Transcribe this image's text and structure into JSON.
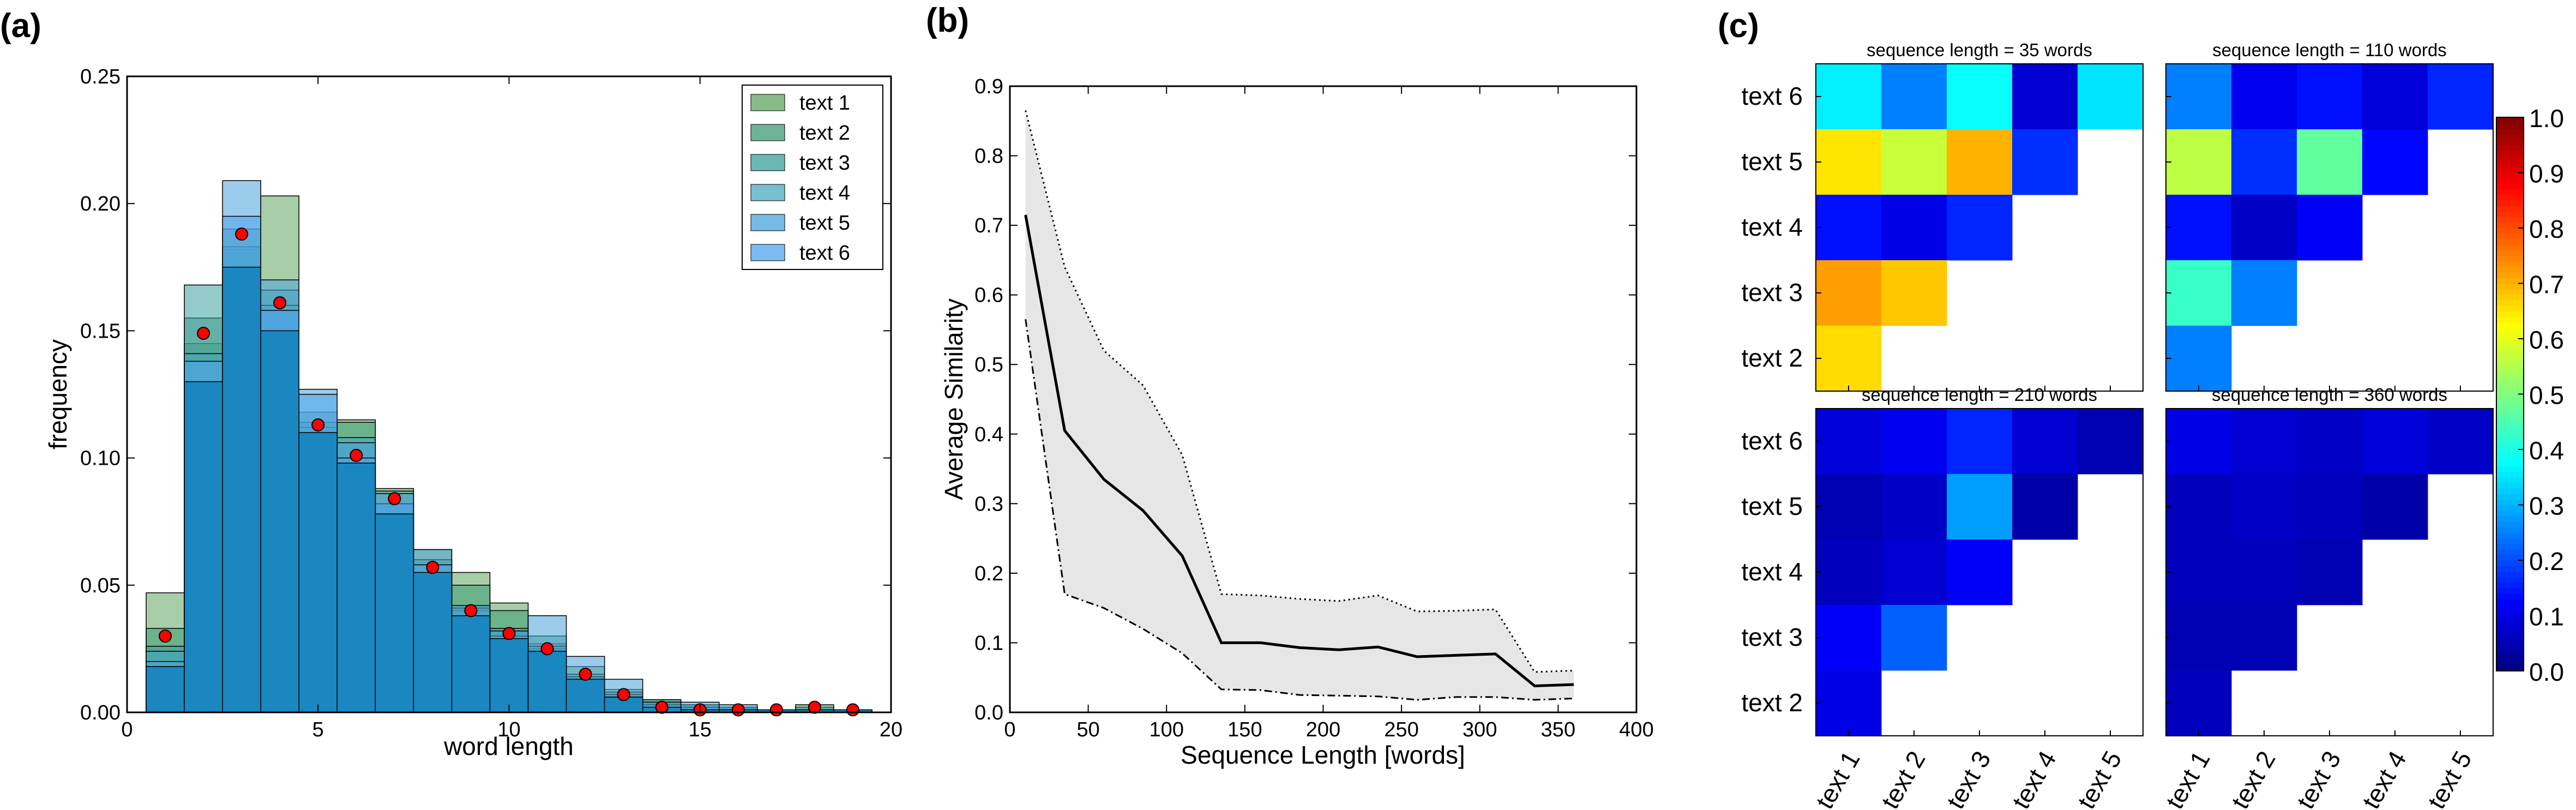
{
  "panel_labels": [
    "(a)",
    "(b)",
    "(c)"
  ],
  "colors": {
    "text1": "#5fa55f",
    "text2": "#3c9a74",
    "text3": "#3a9e9e",
    "text4": "#49aac2",
    "text5": "#4aa3dc",
    "text6": "#4ea4ec",
    "overlap": "#1a87c0",
    "marker": "#ff0000",
    "band": "#e6e6e6"
  },
  "chart_data": [
    {
      "type": "bar",
      "xlabel": "word length",
      "ylabel": "frequency",
      "xlim": [
        0,
        20
      ],
      "ylim": [
        0,
        0.25
      ],
      "xticks": [
        0,
        5,
        10,
        15,
        20
      ],
      "yticks": [
        "0.00",
        "0.05",
        "0.10",
        "0.15",
        "0.20",
        "0.25"
      ],
      "legend_position": "top-right",
      "bins": [
        1,
        2,
        3,
        4,
        5,
        6,
        7,
        8,
        9,
        10,
        11,
        12,
        13,
        14,
        15,
        16,
        17,
        18,
        19
      ],
      "series": [
        {
          "name": "text 1",
          "values": [
            0.047,
            0.145,
            0.182,
            0.203,
            0.118,
            0.115,
            0.088,
            0.064,
            0.055,
            0.043,
            0.027,
            0.018,
            0.009,
            0.005,
            0.003,
            0.002,
            0.001,
            0.002,
            0.001
          ]
        },
        {
          "name": "text 2",
          "values": [
            0.033,
            0.155,
            0.19,
            0.15,
            0.114,
            0.114,
            0.087,
            0.06,
            0.05,
            0.04,
            0.03,
            0.015,
            0.008,
            0.005,
            0.003,
            0.002,
            0.001,
            0.003,
            0.001
          ]
        },
        {
          "name": "text 3",
          "values": [
            0.026,
            0.168,
            0.183,
            0.166,
            0.11,
            0.098,
            0.078,
            0.055,
            0.04,
            0.033,
            0.025,
            0.014,
            0.007,
            0.004,
            0.002,
            0.002,
            0.001,
            0.001,
            0.001
          ]
        },
        {
          "name": "text 4",
          "values": [
            0.024,
            0.141,
            0.175,
            0.16,
            0.112,
            0.108,
            0.082,
            0.055,
            0.041,
            0.03,
            0.026,
            0.014,
            0.006,
            0.003,
            0.002,
            0.001,
            0.001,
            0.001,
            0.001
          ]
        },
        {
          "name": "text 5",
          "values": [
            0.02,
            0.13,
            0.209,
            0.17,
            0.127,
            0.106,
            0.082,
            0.064,
            0.042,
            0.032,
            0.038,
            0.022,
            0.013,
            0.004,
            0.004,
            0.003,
            0.001,
            0.001,
            0.001
          ]
        },
        {
          "name": "text 6",
          "values": [
            0.018,
            0.138,
            0.195,
            0.158,
            0.125,
            0.1,
            0.086,
            0.058,
            0.038,
            0.029,
            0.024,
            0.013,
            0.006,
            0.002,
            0.001,
            0.001,
            0.001,
            0.001,
            0.001
          ]
        }
      ],
      "mean_points": {
        "x": [
          1,
          2,
          3,
          4,
          5,
          6,
          7,
          8,
          9,
          10,
          11,
          12,
          13,
          14,
          15,
          16,
          17,
          18,
          19
        ],
        "y": [
          0.03,
          0.149,
          0.188,
          0.161,
          0.113,
          0.101,
          0.084,
          0.057,
          0.04,
          0.031,
          0.025,
          0.015,
          0.007,
          0.002,
          0.001,
          0.001,
          0.001,
          0.002,
          0.001
        ]
      }
    },
    {
      "type": "line",
      "xlabel": "Sequence Length [words]",
      "ylabel": "Average Similarity",
      "xlim": [
        0,
        400
      ],
      "ylim": [
        0,
        0.9
      ],
      "xticks": [
        0,
        50,
        100,
        150,
        200,
        250,
        300,
        350,
        400
      ],
      "yticks": [
        "0.0",
        "0.1",
        "0.2",
        "0.3",
        "0.4",
        "0.5",
        "0.6",
        "0.7",
        "0.8",
        "0.9"
      ],
      "x": [
        10,
        35,
        60,
        85,
        110,
        135,
        160,
        185,
        210,
        235,
        260,
        285,
        310,
        335,
        360
      ],
      "mean": [
        0.715,
        0.405,
        0.335,
        0.29,
        0.225,
        0.1,
        0.1,
        0.093,
        0.09,
        0.094,
        0.08,
        0.082,
        0.084,
        0.038,
        0.04
      ],
      "upper": [
        0.865,
        0.64,
        0.52,
        0.47,
        0.37,
        0.17,
        0.168,
        0.163,
        0.16,
        0.168,
        0.145,
        0.146,
        0.148,
        0.058,
        0.06
      ],
      "lower": [
        0.565,
        0.17,
        0.15,
        0.12,
        0.085,
        0.033,
        0.032,
        0.025,
        0.024,
        0.023,
        0.018,
        0.022,
        0.022,
        0.018,
        0.02
      ]
    },
    {
      "type": "heatmap",
      "row_labels": [
        "text 6",
        "text 5",
        "text 4",
        "text 3",
        "text 2"
      ],
      "col_labels": [
        "text 1",
        "text 2",
        "text 3",
        "text 4",
        "text 5"
      ],
      "colorbar_ticks": [
        "0.0",
        "0.1",
        "0.2",
        "0.3",
        "0.4",
        "0.5",
        "0.6",
        "0.7",
        "0.8",
        "0.9",
        "1.0"
      ],
      "vmin": 0,
      "vmax": 1,
      "panels": [
        {
          "title": "sequence length = 35 words",
          "values": [
            [
              0.36,
              0.25,
              0.38,
              0.08,
              0.35
            ],
            [
              0.65,
              0.57,
              0.7,
              0.17,
              null
            ],
            [
              0.14,
              0.1,
              0.16,
              null,
              null
            ],
            [
              0.72,
              0.68,
              null,
              null,
              null
            ],
            [
              0.66,
              null,
              null,
              null,
              null
            ]
          ]
        },
        {
          "title": "sequence length = 110 words",
          "values": [
            [
              0.25,
              0.11,
              0.14,
              0.09,
              0.16
            ],
            [
              0.56,
              0.17,
              0.47,
              0.13,
              null
            ],
            [
              0.14,
              0.07,
              0.12,
              null,
              null
            ],
            [
              0.43,
              0.25,
              null,
              null,
              null
            ],
            [
              0.25,
              null,
              null,
              null,
              null
            ]
          ]
        },
        {
          "title": "sequence length = 210 words",
          "values": [
            [
              0.09,
              0.11,
              0.16,
              0.08,
              0.05
            ],
            [
              0.05,
              0.07,
              0.28,
              0.04,
              null
            ],
            [
              0.06,
              0.08,
              0.12,
              null,
              null
            ],
            [
              0.12,
              0.22,
              null,
              null,
              null
            ],
            [
              0.1,
              null,
              null,
              null,
              null
            ]
          ]
        },
        {
          "title": "sequence length = 360 words",
          "values": [
            [
              0.1,
              0.08,
              0.07,
              0.09,
              0.07
            ],
            [
              0.06,
              0.07,
              0.06,
              0.04,
              null
            ],
            [
              0.06,
              0.06,
              0.05,
              null,
              null
            ],
            [
              0.05,
              0.05,
              null,
              null,
              null
            ],
            [
              0.06,
              null,
              null,
              null,
              null
            ]
          ]
        }
      ]
    }
  ]
}
